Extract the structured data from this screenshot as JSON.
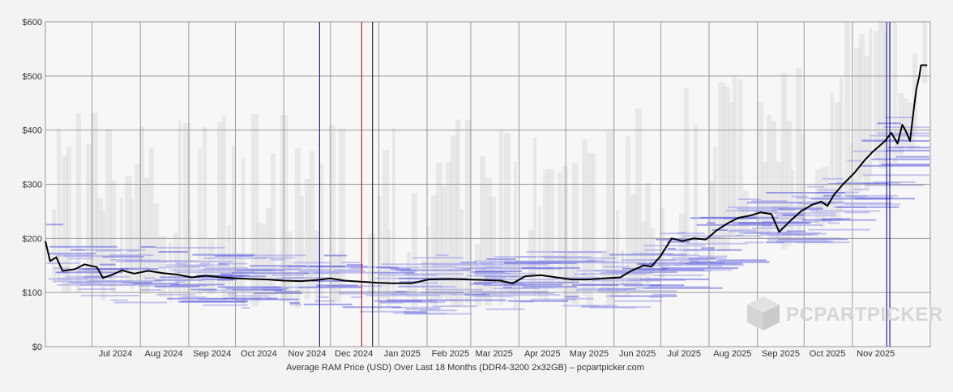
{
  "chart_data": {
    "type": "line",
    "xlabel": "Average RAM Price (USD) Over Last 18 Months (DDR4-3200 2x32GB) – pcpartpicker.com",
    "ylabel": "",
    "ylim": [
      0,
      600
    ],
    "yticks": [
      "$0",
      "$100",
      "$200",
      "$300",
      "$400",
      "$500",
      "$600"
    ],
    "x_tick_labels": [
      "Jul 2024",
      "Aug 2024",
      "Sep 2024",
      "Oct 2024",
      "Nov 2024",
      "Dec 2024",
      "Jan 2025",
      "Feb 2025",
      "Mar 2025",
      "Apr 2025",
      "May 2025",
      "Jun 2025",
      "Jul 2025",
      "Aug 2025",
      "Sep 2025",
      "Oct 2025",
      "Nov 2025"
    ],
    "grid": true,
    "watermark": "PCPARTPICKER",
    "series": [
      {
        "color": "#000000",
        "points": [
          [
            "2024-06-01",
            195
          ],
          [
            "2024-06-04",
            158
          ],
          [
            "2024-06-08",
            165
          ],
          [
            "2024-06-12",
            140
          ],
          [
            "2024-06-20",
            143
          ],
          [
            "2024-06-26",
            152
          ],
          [
            "2024-07-04",
            147
          ],
          [
            "2024-07-08",
            127
          ],
          [
            "2024-07-14",
            133
          ],
          [
            "2024-07-20",
            141
          ],
          [
            "2024-07-28",
            135
          ],
          [
            "2024-08-06",
            140
          ],
          [
            "2024-08-15",
            136
          ],
          [
            "2024-08-25",
            133
          ],
          [
            "2024-09-03",
            128
          ],
          [
            "2024-09-12",
            131
          ],
          [
            "2024-09-22",
            128
          ],
          [
            "2024-10-02",
            126
          ],
          [
            "2024-10-12",
            125
          ],
          [
            "2024-10-22",
            124
          ],
          [
            "2024-11-01",
            122
          ],
          [
            "2024-11-12",
            121
          ],
          [
            "2024-11-22",
            123
          ],
          [
            "2024-12-01",
            126
          ],
          [
            "2024-12-10",
            122
          ],
          [
            "2024-12-20",
            120
          ],
          [
            "2024-12-31",
            118
          ],
          [
            "2025-01-10",
            117
          ],
          [
            "2025-01-22",
            117
          ],
          [
            "2025-02-02",
            124
          ],
          [
            "2025-02-15",
            125
          ],
          [
            "2025-02-28",
            124
          ],
          [
            "2025-03-10",
            123
          ],
          [
            "2025-03-20",
            122
          ],
          [
            "2025-03-28",
            117
          ],
          [
            "2025-04-05",
            130
          ],
          [
            "2025-04-15",
            132
          ],
          [
            "2025-04-25",
            128
          ],
          [
            "2025-05-05",
            124
          ],
          [
            "2025-05-15",
            124
          ],
          [
            "2025-05-25",
            126
          ],
          [
            "2025-06-05",
            128
          ],
          [
            "2025-06-12",
            140
          ],
          [
            "2025-06-20",
            150
          ],
          [
            "2025-06-25",
            148
          ],
          [
            "2025-07-01",
            168
          ],
          [
            "2025-07-08",
            200
          ],
          [
            "2025-07-15",
            195
          ],
          [
            "2025-07-22",
            200
          ],
          [
            "2025-07-30",
            198
          ],
          [
            "2025-08-06",
            215
          ],
          [
            "2025-08-13",
            228
          ],
          [
            "2025-08-20",
            238
          ],
          [
            "2025-08-27",
            242
          ],
          [
            "2025-09-03",
            248
          ],
          [
            "2025-09-10",
            245
          ],
          [
            "2025-09-15",
            212
          ],
          [
            "2025-09-22",
            232
          ],
          [
            "2025-09-29",
            250
          ],
          [
            "2025-10-06",
            262
          ],
          [
            "2025-10-12",
            268
          ],
          [
            "2025-10-16",
            260
          ],
          [
            "2025-10-20",
            280
          ],
          [
            "2025-10-26",
            300
          ],
          [
            "2025-11-02",
            320
          ],
          [
            "2025-11-09",
            345
          ],
          [
            "2025-11-14",
            360
          ],
          [
            "2025-11-18",
            370
          ],
          [
            "2025-11-22",
            380
          ],
          [
            "2025-11-26",
            395
          ],
          [
            "2025-11-30",
            375
          ],
          [
            "2025-12-03",
            410
          ],
          [
            "2025-12-05",
            400
          ],
          [
            "2025-12-08",
            380
          ],
          [
            "2025-12-10",
            430
          ],
          [
            "2025-12-12",
            475
          ],
          [
            "2025-12-14",
            500
          ],
          [
            "2025-12-15",
            520
          ],
          [
            "2025-12-19",
            520
          ]
        ]
      }
    ],
    "vertical_markers": [
      {
        "date": "2024-11-24",
        "color": "#00008b"
      },
      {
        "date": "2024-12-21",
        "color": "#b00000"
      },
      {
        "date": "2024-12-28",
        "color": "#000000"
      },
      {
        "date": "2025-11-23",
        "color": "#00008b"
      },
      {
        "date": "2025-11-25",
        "color": "#00008b"
      }
    ]
  }
}
